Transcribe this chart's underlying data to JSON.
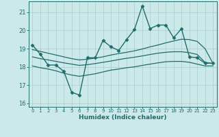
{
  "xlabel": "Humidex (Indice chaleur)",
  "xlim": [
    -0.5,
    23.5
  ],
  "ylim": [
    15.8,
    21.6
  ],
  "yticks": [
    16,
    17,
    18,
    19,
    20,
    21
  ],
  "xticks": [
    0,
    1,
    2,
    3,
    4,
    5,
    6,
    7,
    8,
    9,
    10,
    11,
    12,
    13,
    14,
    15,
    16,
    17,
    18,
    19,
    20,
    21,
    22,
    23
  ],
  "background_color": "#cce9e9",
  "grid_color": "#a8cccc",
  "line_color": "#1f6b6b",
  "series": [
    {
      "x": [
        0,
        1,
        2,
        3,
        4,
        5,
        6,
        7,
        8,
        9,
        10,
        11,
        12,
        13,
        14,
        15,
        16,
        17,
        18,
        19,
        20,
        21,
        22,
        23
      ],
      "y": [
        19.2,
        18.7,
        18.1,
        18.1,
        17.75,
        16.6,
        16.45,
        18.5,
        18.5,
        19.45,
        19.1,
        18.9,
        19.5,
        20.05,
        21.35,
        20.1,
        20.3,
        20.3,
        19.6,
        20.1,
        18.55,
        18.5,
        18.2,
        18.2
      ],
      "has_marker": true,
      "marker": "D",
      "markersize": 2.5,
      "linewidth": 1.0
    },
    {
      "x": [
        0,
        1,
        2,
        3,
        4,
        5,
        6,
        7,
        8,
        9,
        10,
        11,
        12,
        13,
        14,
        15,
        16,
        17,
        18,
        19,
        20,
        21,
        22,
        23
      ],
      "y": [
        18.95,
        18.85,
        18.75,
        18.65,
        18.55,
        18.45,
        18.38,
        18.42,
        18.48,
        18.55,
        18.65,
        18.73,
        18.8,
        18.88,
        18.98,
        19.1,
        19.2,
        19.32,
        19.42,
        19.52,
        19.5,
        19.4,
        19.0,
        18.2
      ],
      "has_marker": false,
      "linewidth": 0.9
    },
    {
      "x": [
        0,
        1,
        2,
        3,
        4,
        5,
        6,
        7,
        8,
        9,
        10,
        11,
        12,
        13,
        14,
        15,
        16,
        17,
        18,
        19,
        20,
        21,
        22,
        23
      ],
      "y": [
        18.55,
        18.45,
        18.38,
        18.3,
        18.22,
        18.15,
        18.08,
        18.12,
        18.18,
        18.25,
        18.32,
        18.4,
        18.47,
        18.53,
        18.6,
        18.68,
        18.75,
        18.8,
        18.83,
        18.83,
        18.78,
        18.68,
        18.25,
        18.18
      ],
      "has_marker": false,
      "linewidth": 0.9
    },
    {
      "x": [
        0,
        1,
        2,
        3,
        4,
        5,
        6,
        7,
        8,
        9,
        10,
        11,
        12,
        13,
        14,
        15,
        16,
        17,
        18,
        19,
        20,
        21,
        22,
        23
      ],
      "y": [
        18.05,
        17.95,
        17.88,
        17.78,
        17.65,
        17.55,
        17.48,
        17.55,
        17.62,
        17.72,
        17.82,
        17.88,
        17.95,
        18.0,
        18.08,
        18.15,
        18.22,
        18.28,
        18.3,
        18.3,
        18.25,
        18.15,
        18.05,
        18.05
      ],
      "has_marker": false,
      "linewidth": 0.9
    }
  ]
}
